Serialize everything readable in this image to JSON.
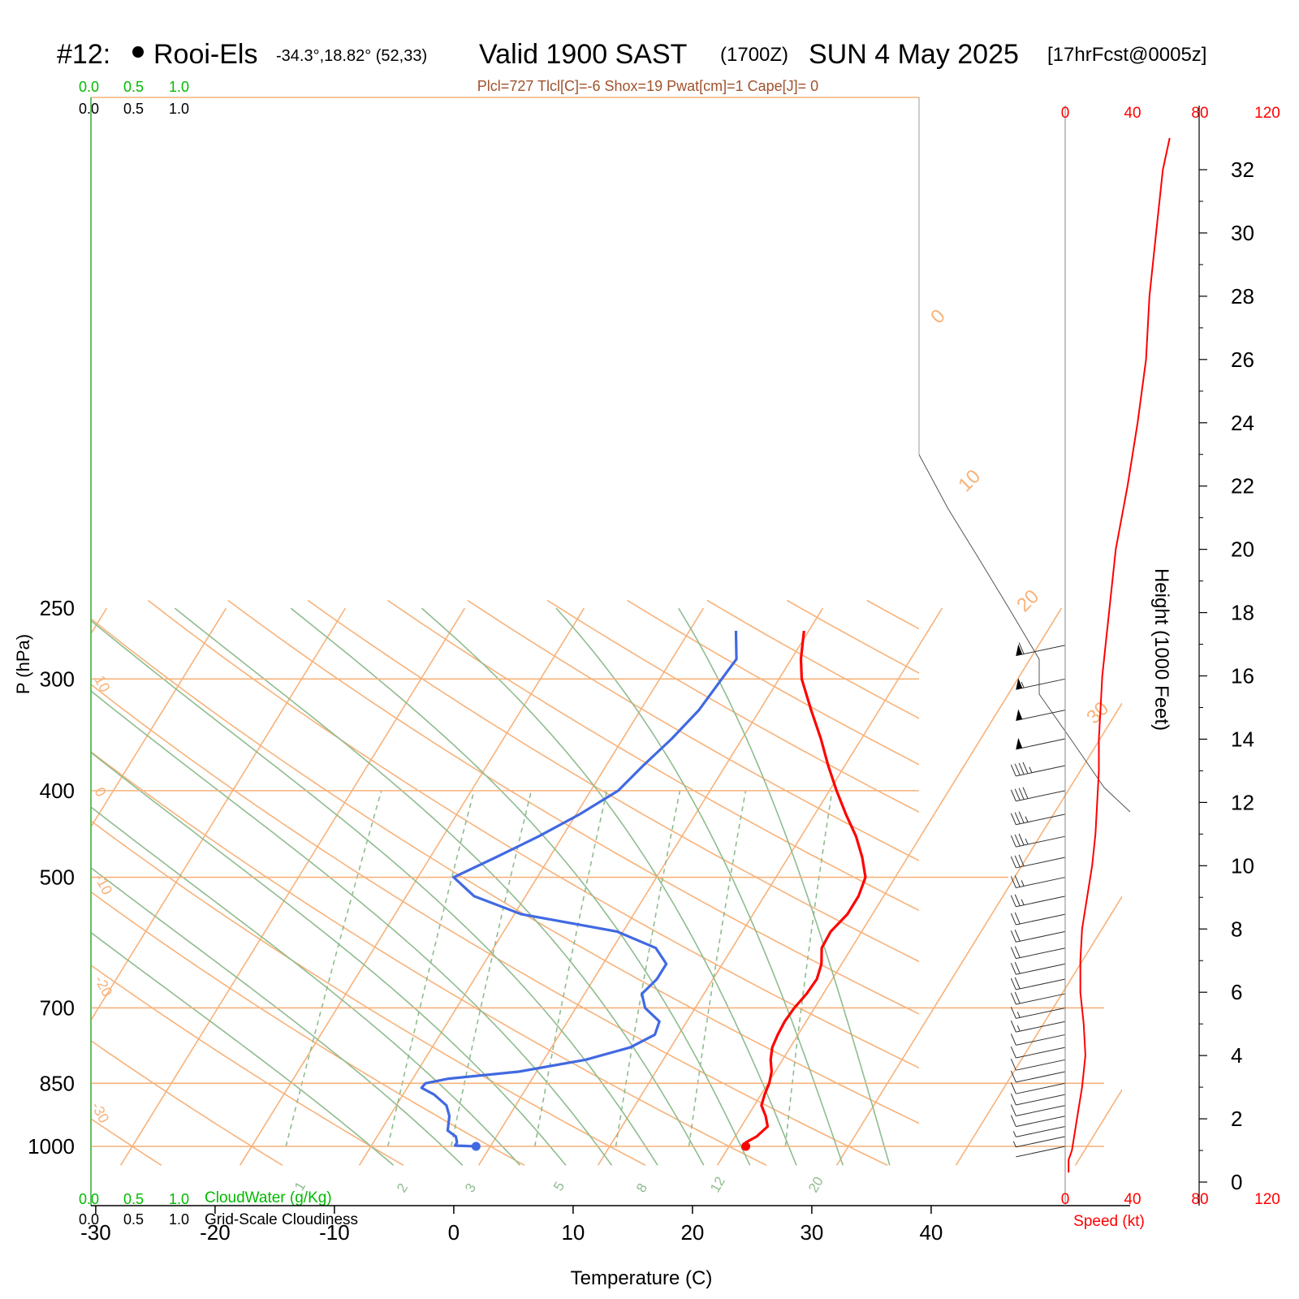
{
  "header": {
    "station_id": "#12:",
    "station_name": "Rooi-Els",
    "coords": "-34.3°,18.82° (52,33)",
    "valid": "Valid 1900 SAST",
    "zulu": "(1700Z)",
    "date": "SUN 4 May 2025",
    "forecast": "[17hrFcst@0005z]"
  },
  "indices": "Plcl=727 Tlcl[C]=-6 Shox=19 Pwat[cm]=1 Cape[J]= 0",
  "cloud_scale": {
    "green": [
      "0.0",
      "0.5",
      "1.0"
    ],
    "black": [
      "0.0",
      "0.5",
      "1.0"
    ],
    "label_green": "CloudWater (g/Kg)",
    "label_black": "Grid-Scale Cloudiness"
  },
  "colors": {
    "temperature": "#ff0000",
    "dewpoint": "#4169e1",
    "isotherm": "#f7b27a",
    "dry_adiabat": "#f7b27a",
    "moist_adiabat": "#8fbc8f",
    "mixing_ratio": "#8fbc8f",
    "cloud_green": "#00bb00",
    "speed": "#ff0000",
    "indices": "#a0522d"
  },
  "chart_data": {
    "type": "line",
    "chart_kind": "Skew-T log-P",
    "xlabel": "Temperature (C)",
    "ylabel": "P (hPa)",
    "right_ylabel": "Height (1000 Feet)",
    "speed_label": "Speed (kt)",
    "x_ticks": [
      "-30",
      "-20",
      "-10",
      "0",
      "10",
      "20",
      "30",
      "40"
    ],
    "p_ticks": [
      "250",
      "300",
      "400",
      "500",
      "700",
      "850",
      "1000"
    ],
    "height_ticks": [
      "0",
      "2",
      "4",
      "6",
      "8",
      "10",
      "12",
      "14",
      "16",
      "18",
      "20",
      "22",
      "24",
      "26",
      "28",
      "30",
      "32"
    ],
    "speed_ticks": [
      "0",
      "40",
      "80",
      "120"
    ],
    "isotherm_labels": [
      "10",
      "0",
      "-10",
      "-20",
      "-30"
    ],
    "right_isotherm_labels": [
      "0",
      "10",
      "20",
      "30"
    ],
    "mixing_ratio_labels": [
      "1",
      "2",
      "3",
      "5",
      "8",
      "12",
      "20"
    ],
    "ylim_hpa": [
      1050,
      250
    ],
    "series": [
      {
        "name": "",
        "kind": "temperature",
        "points": [
          [
            1000,
            21.4
          ],
          [
            990,
            21.2
          ],
          [
            975,
            21.8
          ],
          [
            950,
            22.2
          ],
          [
            925,
            21.5
          ],
          [
            900,
            20.6
          ],
          [
            875,
            20.3
          ],
          [
            850,
            20.1
          ],
          [
            825,
            19.7
          ],
          [
            800,
            19.0
          ],
          [
            775,
            18.5
          ],
          [
            750,
            18.3
          ],
          [
            725,
            18.2
          ],
          [
            700,
            18.3
          ],
          [
            675,
            18.6
          ],
          [
            650,
            18.7
          ],
          [
            625,
            18.3
          ],
          [
            600,
            17.5
          ],
          [
            575,
            17.4
          ],
          [
            550,
            17.9
          ],
          [
            525,
            17.9
          ],
          [
            500,
            17.5
          ],
          [
            475,
            16.2
          ],
          [
            450,
            14.6
          ],
          [
            425,
            12.6
          ],
          [
            400,
            10.6
          ],
          [
            375,
            8.6
          ],
          [
            350,
            6.6
          ],
          [
            325,
            4.3
          ],
          [
            300,
            1.9
          ],
          [
            285,
            0.8
          ],
          [
            265,
            -0.4
          ]
        ]
      },
      {
        "name": "",
        "kind": "dewpoint",
        "points": [
          [
            1000,
            -1.2
          ],
          [
            998,
            -3.0
          ],
          [
            990,
            -3.0
          ],
          [
            975,
            -3.4
          ],
          [
            960,
            -4.4
          ],
          [
            925,
            -5.0
          ],
          [
            900,
            -5.8
          ],
          [
            875,
            -7.4
          ],
          [
            860,
            -8.8
          ],
          [
            850,
            -8.7
          ],
          [
            840,
            -7.0
          ],
          [
            825,
            -1.5
          ],
          [
            800,
            3.5
          ],
          [
            775,
            6.6
          ],
          [
            750,
            8.0
          ],
          [
            725,
            7.7
          ],
          [
            700,
            5.8
          ],
          [
            675,
            4.8
          ],
          [
            650,
            5.3
          ],
          [
            625,
            5.3
          ],
          [
            600,
            3.6
          ],
          [
            575,
            -0.5
          ],
          [
            550,
            -9.4
          ],
          [
            525,
            -14.3
          ],
          [
            500,
            -17.0
          ],
          [
            475,
            -14.5
          ],
          [
            450,
            -12.0
          ],
          [
            425,
            -9.7
          ],
          [
            400,
            -7.7
          ],
          [
            375,
            -6.9
          ],
          [
            350,
            -5.9
          ],
          [
            325,
            -5.1
          ],
          [
            300,
            -4.8
          ],
          [
            285,
            -4.6
          ],
          [
            265,
            -6.1
          ]
        ]
      }
    ],
    "wind_speed_profile": [
      [
        0.3,
        2
      ],
      [
        0.7,
        2
      ],
      [
        1.0,
        4
      ],
      [
        2.0,
        7
      ],
      [
        3.0,
        10
      ],
      [
        4.0,
        12
      ],
      [
        5.0,
        11
      ],
      [
        6.0,
        9
      ],
      [
        7.0,
        9
      ],
      [
        8.0,
        10
      ],
      [
        9.0,
        13
      ],
      [
        10.0,
        16
      ],
      [
        11.0,
        18
      ],
      [
        12.0,
        19
      ],
      [
        13.0,
        20
      ],
      [
        14.0,
        20
      ],
      [
        15.0,
        21
      ],
      [
        16.0,
        22
      ],
      [
        18.0,
        26
      ],
      [
        20.0,
        30
      ],
      [
        22.0,
        37
      ],
      [
        24.0,
        43
      ],
      [
        26.0,
        48
      ],
      [
        28.0,
        50
      ],
      [
        30.0,
        54
      ],
      [
        32.0,
        58
      ],
      [
        33.0,
        62
      ]
    ]
  }
}
